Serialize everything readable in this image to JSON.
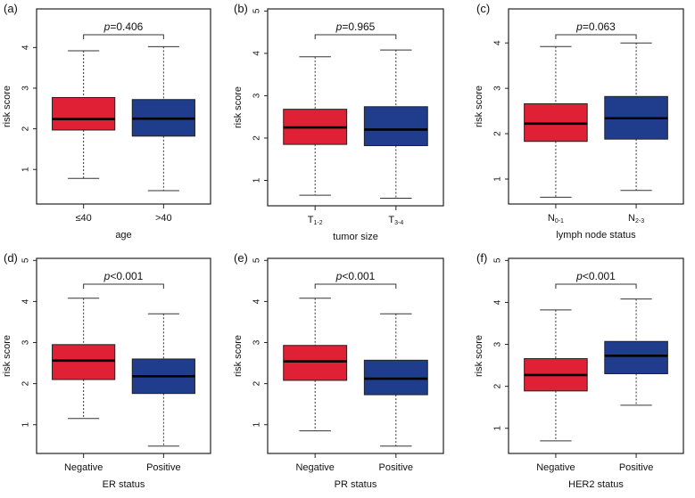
{
  "colors": {
    "group1": "#e02034",
    "group2": "#1f3d8c",
    "frame": "#222222"
  },
  "chart_data": [
    {
      "type": "boxplot",
      "panel_label": "(a)",
      "ylabel": "risk score",
      "xlabel": "age",
      "categories": [
        {
          "label": "≤40",
          "sub": ""
        },
        {
          "label": ">40",
          "sub": ""
        }
      ],
      "boxes": [
        {
          "min": 0.78,
          "q1": 1.97,
          "median": 2.24,
          "q3": 2.77,
          "max": 3.92
        },
        {
          "min": 0.48,
          "q1": 1.82,
          "median": 2.25,
          "q3": 2.72,
          "max": 4.02
        }
      ],
      "p_prefix": "p",
      "p_value": "=0.406",
      "ylim": [
        0.15,
        4.95
      ],
      "yticks": [
        1,
        2,
        3,
        4
      ]
    },
    {
      "type": "boxplot",
      "panel_label": "(b)",
      "ylabel": "risk score",
      "xlabel": "tumor size",
      "categories": [
        {
          "label": "T",
          "sub": "1-2"
        },
        {
          "label": "T",
          "sub": "3-4"
        }
      ],
      "boxes": [
        {
          "min": 0.65,
          "q1": 1.85,
          "median": 2.25,
          "q3": 2.68,
          "max": 3.92
        },
        {
          "min": 0.58,
          "q1": 1.82,
          "median": 2.2,
          "q3": 2.74,
          "max": 4.08
        }
      ],
      "p_prefix": "p",
      "p_value": "=0.965",
      "ylim": [
        0.4,
        5.05
      ],
      "yticks": [
        1,
        2,
        3,
        4,
        5
      ]
    },
    {
      "type": "boxplot",
      "panel_label": "(c)",
      "ylabel": "risk score",
      "xlabel": "lymph node status",
      "categories": [
        {
          "label": "N",
          "sub": "0-1"
        },
        {
          "label": "N",
          "sub": "2-3"
        }
      ],
      "boxes": [
        {
          "min": 0.6,
          "q1": 1.83,
          "median": 2.22,
          "q3": 2.66,
          "max": 3.92
        },
        {
          "min": 0.75,
          "q1": 1.88,
          "median": 2.34,
          "q3": 2.82,
          "max": 4.0
        }
      ],
      "p_prefix": "p",
      "p_value": "=0.063",
      "ylim": [
        0.45,
        4.75
      ],
      "yticks": [
        1,
        2,
        3,
        4
      ]
    },
    {
      "type": "boxplot",
      "panel_label": "(d)",
      "ylabel": "risk score",
      "xlabel": "ER status",
      "categories": [
        {
          "label": "Negative",
          "sub": ""
        },
        {
          "label": "Positive",
          "sub": ""
        }
      ],
      "boxes": [
        {
          "min": 1.15,
          "q1": 2.1,
          "median": 2.56,
          "q3": 2.95,
          "max": 4.08
        },
        {
          "min": 0.48,
          "q1": 1.76,
          "median": 2.18,
          "q3": 2.6,
          "max": 3.7
        }
      ],
      "p_prefix": "p",
      "p_value": "<0.001",
      "ylim": [
        0.3,
        5.05
      ],
      "yticks": [
        1,
        2,
        3,
        4,
        5
      ]
    },
    {
      "type": "boxplot",
      "panel_label": "(e)",
      "ylabel": "risk score",
      "xlabel": "PR status",
      "categories": [
        {
          "label": "Negative",
          "sub": ""
        },
        {
          "label": "Positive",
          "sub": ""
        }
      ],
      "boxes": [
        {
          "min": 0.85,
          "q1": 2.08,
          "median": 2.54,
          "q3": 2.93,
          "max": 4.08
        },
        {
          "min": 0.48,
          "q1": 1.73,
          "median": 2.12,
          "q3": 2.57,
          "max": 3.7
        }
      ],
      "p_prefix": "p",
      "p_value": "<0.001",
      "ylim": [
        0.3,
        5.05
      ],
      "yticks": [
        1,
        2,
        3,
        4,
        5
      ]
    },
    {
      "type": "boxplot",
      "panel_label": "(f)",
      "ylabel": "risk score",
      "xlabel": "HER2 status",
      "categories": [
        {
          "label": "Negative",
          "sub": ""
        },
        {
          "label": "Positive",
          "sub": ""
        }
      ],
      "boxes": [
        {
          "min": 0.7,
          "q1": 1.89,
          "median": 2.27,
          "q3": 2.66,
          "max": 3.82
        },
        {
          "min": 1.55,
          "q1": 2.3,
          "median": 2.73,
          "q3": 3.07,
          "max": 4.08
        }
      ],
      "p_prefix": "p",
      "p_value": "<0.001",
      "ylim": [
        0.4,
        5.05
      ],
      "yticks": [
        1,
        2,
        3,
        4,
        5
      ]
    }
  ]
}
